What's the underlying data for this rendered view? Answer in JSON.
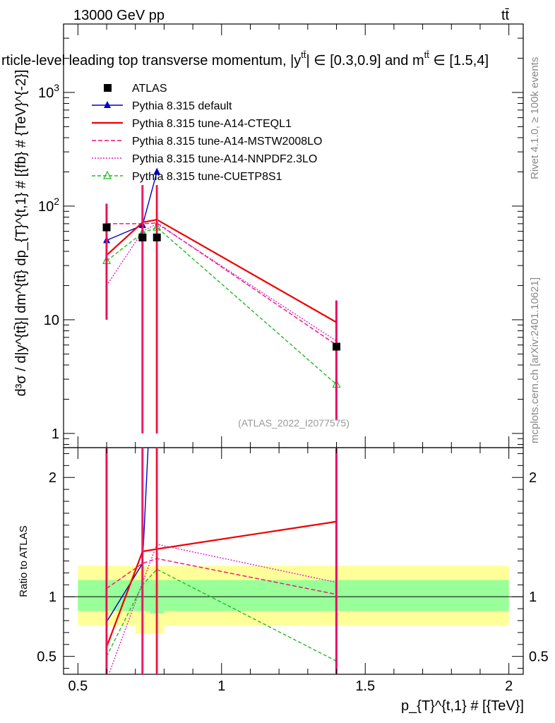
{
  "header": {
    "energy_label": "13000 GeV pp",
    "process_label": "tt̄"
  },
  "title": "rticle-level leading top transverse momentum, |y",
  "title_sup": "tt̄",
  "title_tail": "| ∈ [0.3,0.9] and m",
  "title_sup2": "tt̄",
  "title_end": " ∈ [1.5,4]",
  "side_labels": {
    "rivet": "Rivet 4.1.0, ≥ 100k events",
    "mcplots": "mcplots.cern.ch [arXiv:2401.10621]"
  },
  "watermark": "(ATLAS_2022_I2077575)",
  "chart_data": [
    {
      "type": "line",
      "panel": "main",
      "ylabel": "d³σ / d|y^{tt̄}| dm^{tt̄} dp_{T}^{t,1} # [{fb} # {TeV}^{-2}]",
      "yscale": "log",
      "ylim": [
        0.75,
        4000
      ],
      "xlim": [
        0.45,
        2.05
      ],
      "y_tick_labels": [
        "1",
        "10",
        "10²",
        "10³"
      ],
      "x": [
        0.6,
        0.725,
        0.775,
        1.4
      ],
      "series": [
        {
          "name": "ATLAS",
          "style": "data",
          "color": "#000000",
          "values": [
            65,
            53,
            53,
            5.8
          ],
          "err_low": [
            55,
            52,
            52,
            4.5
          ],
          "err_high": [
            40,
            100,
            100,
            9
          ]
        },
        {
          "name": "Pythia 8.315 default",
          "color": "#0000cc",
          "marker": "triangle",
          "values": [
            50,
            68,
            200,
            null
          ]
        },
        {
          "name": "Pythia 8.315 tune-A14-CTEQL1",
          "color": "#ee0000",
          "values": [
            37,
            72,
            76,
            9.5
          ]
        },
        {
          "name": "Pythia 8.315 tune-A14-MSTW2008LO",
          "color": "#ee1177",
          "values": [
            70,
            70,
            71,
            6.0
          ]
        },
        {
          "name": "Pythia 8.315 tune-A14-NNPDF2.3LO",
          "color": "#dd22cc",
          "values": [
            20,
            60,
            70,
            6.5
          ]
        },
        {
          "name": "Pythia 8.315 tune-CUETP8S1",
          "color": "#22bb22",
          "marker": "open-triangle",
          "values": [
            33,
            58,
            65,
            2.7
          ]
        }
      ]
    },
    {
      "type": "line",
      "panel": "ratio",
      "ylabel": "Ratio to ATLAS",
      "xlabel": "p_{T}^{t,1} # [{TeV}]",
      "ylim": [
        0.35,
        2.25
      ],
      "xlim": [
        0.45,
        2.05
      ],
      "y_tick_labels": [
        "0.5",
        "1",
        "2"
      ],
      "x_tick_labels": [
        "0.5",
        "1",
        "1.5",
        "2"
      ],
      "x": [
        0.6,
        0.725,
        0.775,
        1.4
      ],
      "bands": {
        "edges": [
          0.5,
          0.7,
          0.75,
          0.8,
          2.0
        ],
        "yellow_low": [
          0.76,
          0.69,
          0.69,
          0.76
        ],
        "yellow_high": [
          1.26,
          1.26,
          1.26,
          1.26
        ],
        "green_low": [
          0.88,
          0.88,
          0.86,
          0.88
        ],
        "green_high": [
          1.14,
          1.14,
          1.14,
          1.14
        ]
      },
      "series": [
        {
          "name": "Pythia 8.315 default",
          "color": "#0000cc",
          "values": [
            0.79,
            1.28,
            3.8,
            null
          ]
        },
        {
          "name": "Pythia 8.315 tune-A14-CTEQL1",
          "color": "#ee0000",
          "values": [
            0.58,
            1.38,
            1.4,
            1.63
          ]
        },
        {
          "name": "Pythia 8.315 tune-A14-MSTW2008LO",
          "color": "#ee1177",
          "values": [
            1.07,
            1.28,
            1.32,
            1.02
          ]
        },
        {
          "name": "Pythia 8.315 tune-A14-NNPDF2.3LO",
          "color": "#dd22cc",
          "values": [
            0.3,
            1.12,
            1.44,
            1.12
          ]
        },
        {
          "name": "Pythia 8.315 tune-CUETP8S1",
          "color": "#22bb22",
          "values": [
            0.5,
            1.1,
            1.23,
            0.46
          ]
        }
      ]
    }
  ]
}
